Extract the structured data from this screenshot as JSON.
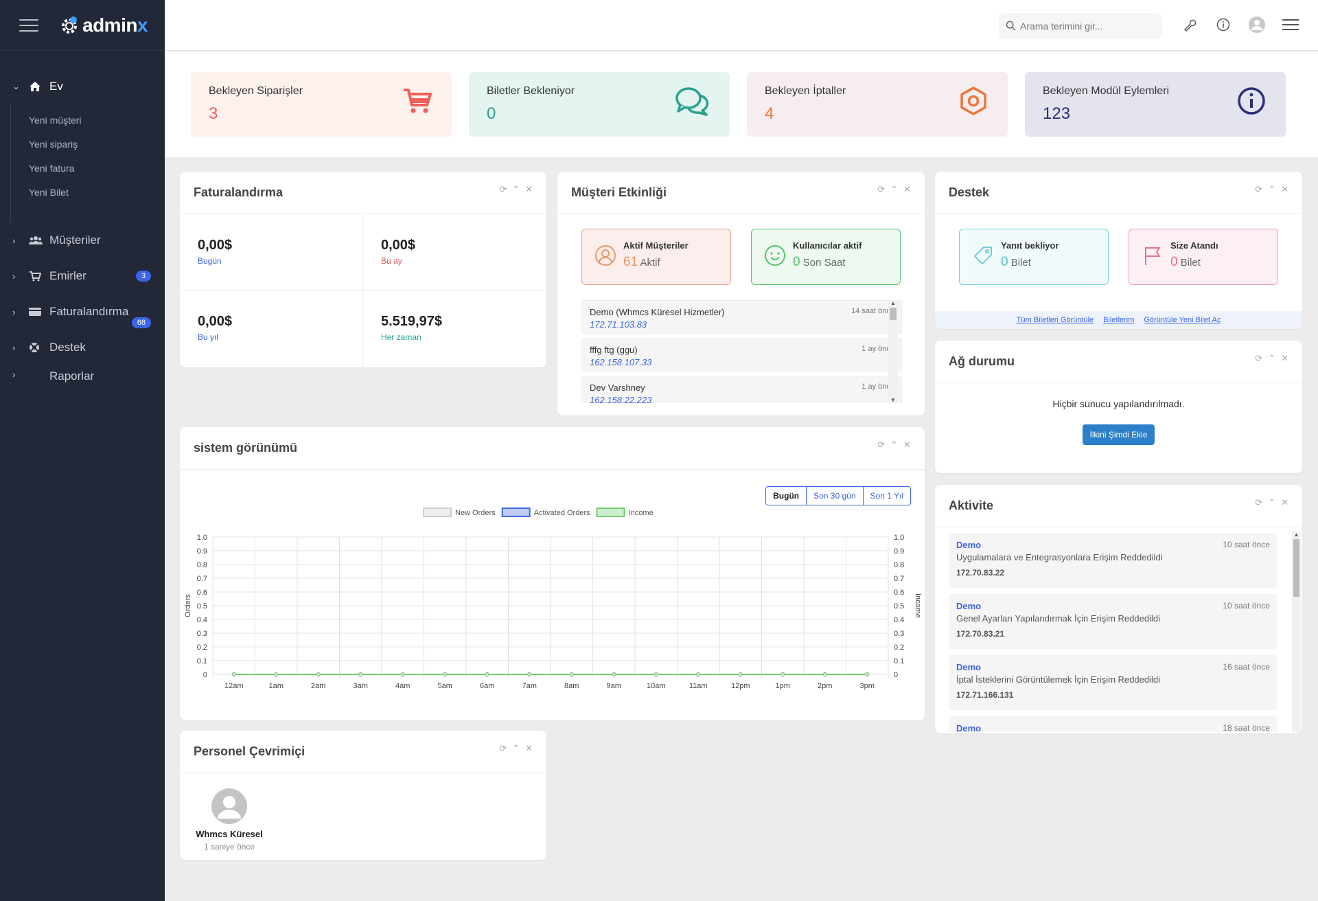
{
  "brand": {
    "name_main": "admin",
    "name_accent": "x"
  },
  "sidebar": {
    "home_label": "Ev",
    "sub_items": [
      "Yeni müşteri",
      "Yeni sipariş",
      "Yeni fatura",
      "Yeni Bilet"
    ],
    "items": [
      {
        "label": "Müşteriler",
        "badge": ""
      },
      {
        "label": "Emirler",
        "badge": "3"
      },
      {
        "label": "Faturalandırma",
        "badge": "68"
      },
      {
        "label": "Destek",
        "badge": ""
      },
      {
        "label": "Raporlar",
        "badge": ""
      }
    ]
  },
  "topbar": {
    "search_placeholder": "Arama terimini gir..."
  },
  "stats": [
    {
      "label": "Bekleyen Siparişler",
      "value": "3",
      "color": "#ef5f5a",
      "bg": "#fdf1ee",
      "icon": "cart-icon"
    },
    {
      "label": "Biletler Bekleniyor",
      "value": "0",
      "color": "#2aa18c",
      "bg": "#e4f4f1",
      "icon": "chat-icon"
    },
    {
      "label": "Bekleyen İptaller",
      "value": "4",
      "color": "#f0743b",
      "bg": "#f6eeee",
      "icon": "hexagon-icon"
    },
    {
      "label": "Bekleyen Modül Eylemleri",
      "value": "123",
      "color": "#2b2e7a",
      "bg": "#e4e4ef",
      "icon": "info-icon"
    }
  ],
  "billing": {
    "title": "Faturalandırma",
    "cells": [
      {
        "amount": "0,00$",
        "label": "Bugün",
        "color": "#3b64e6"
      },
      {
        "amount": "0,00$",
        "label": "Bu ay",
        "color": "#e45b5b"
      },
      {
        "amount": "0,00$",
        "label": "Bu yıl",
        "color": "#3b64e6"
      },
      {
        "amount": "5.519,97$",
        "label": "Her zaman",
        "color": "#2aa18c"
      }
    ]
  },
  "customer_activity": {
    "title": "Müşteri Etkinliği",
    "active_label": "Aktif Müşteriler",
    "active_value": "61",
    "active_unit": "Aktif",
    "users_label": "Kullanıcılar aktif",
    "users_value": "0",
    "users_unit": "Son Saat",
    "entries": [
      {
        "name": "Demo (Whmcs Küresel Hizmetler)",
        "ip": "172.71.103.83",
        "time": "14 saat önce"
      },
      {
        "name": "fffg ftg (ggu)",
        "ip": "162.158.107.33",
        "time": "1 ay önce"
      },
      {
        "name": "Dev Varshney",
        "ip": "162.158.22.223",
        "time": "1 ay önce"
      }
    ]
  },
  "support": {
    "title": "Destek",
    "awaiting_label": "Yanıt bekliyor",
    "awaiting_value": "0",
    "awaiting_unit": "Bilet",
    "assigned_label": "Size Atandı",
    "assigned_value": "0",
    "assigned_unit": "Bilet",
    "links": [
      "Tüm Biletleri Görüntüle",
      "Biletlerim",
      "Görüntüle Yeni Bilet Aç"
    ]
  },
  "network": {
    "title": "Ağ durumu",
    "message": "Hiçbir sunucu yapılandırılmadı.",
    "button": "İlkini Şimdi Ekle"
  },
  "system": {
    "title": "sistem görünümü",
    "ranges": [
      "Bugün",
      "Son 30 gün",
      "Son 1 Yıl"
    ]
  },
  "chart_data": {
    "type": "line",
    "categories": [
      "12am",
      "1am",
      "2am",
      "3am",
      "4am",
      "5am",
      "6am",
      "7am",
      "8am",
      "9am",
      "10am",
      "11am",
      "12pm",
      "1pm",
      "2pm",
      "3pm"
    ],
    "series": [
      {
        "name": "New Orders",
        "values": [
          0,
          0,
          0,
          0,
          0,
          0,
          0,
          0,
          0,
          0,
          0,
          0,
          0,
          0,
          0,
          0
        ],
        "color": "#cfcfcf"
      },
      {
        "name": "Activated Orders",
        "values": [
          0,
          0,
          0,
          0,
          0,
          0,
          0,
          0,
          0,
          0,
          0,
          0,
          0,
          0,
          0,
          0
        ],
        "color": "#4169e1"
      },
      {
        "name": "Income",
        "values": [
          0,
          0,
          0,
          0,
          0,
          0,
          0,
          0,
          0,
          0,
          0,
          0,
          0,
          0,
          0,
          0
        ],
        "color": "#6fcf6f"
      }
    ],
    "ylabel": "Orders",
    "y2label": "Income",
    "yticks": [
      "1.0",
      "0.9",
      "0.8",
      "0.7",
      "0.6",
      "0.5",
      "0.4",
      "0.3",
      "0.2",
      "0.1",
      "0"
    ],
    "ylim": [
      0,
      1
    ],
    "legend": "top-center",
    "grid": true
  },
  "activity": {
    "title": "Aktivite",
    "entries": [
      {
        "user": "Demo",
        "desc": "Uygulamalara ve Entegrasyonlara Erişim Reddedildi",
        "ip": "172.70.83.22",
        "time": "10 saat önce"
      },
      {
        "user": "Demo",
        "desc": "Genel Ayarları Yapılandırmak İçin Erişim Reddedildi",
        "ip": "172.70.83.21",
        "time": "10 saat önce"
      },
      {
        "user": "Demo",
        "desc": "İptal İsteklerini Görüntülemek İçin Erişim Reddedildi",
        "ip": "172.71.166.131",
        "time": "16 saat önce"
      },
      {
        "user": "Demo",
        "desc": "",
        "ip": "",
        "time": "18 saat önce"
      }
    ]
  },
  "staff": {
    "title": "Personel Çevrimiçi",
    "name": "Whmcs Küresel",
    "time": "1 saniye önce"
  }
}
